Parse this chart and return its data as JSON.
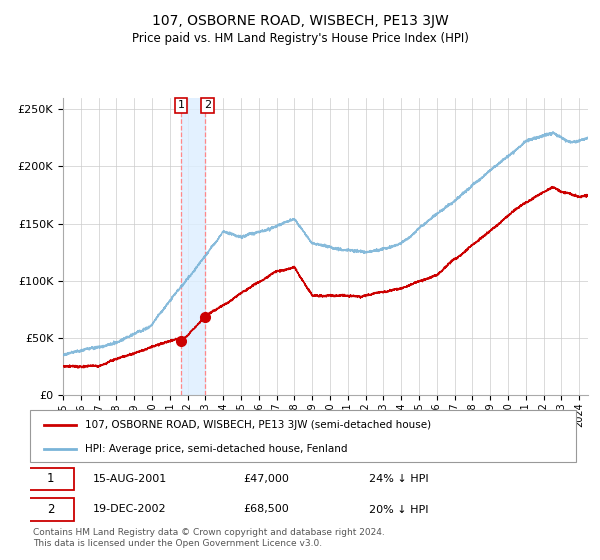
{
  "title": "107, OSBORNE ROAD, WISBECH, PE13 3JW",
  "subtitle": "Price paid vs. HM Land Registry's House Price Index (HPI)",
  "legend_line1": "107, OSBORNE ROAD, WISBECH, PE13 3JW (semi-detached house)",
  "legend_line2": "HPI: Average price, semi-detached house, Fenland",
  "transaction1_date": "15-AUG-2001",
  "transaction1_price": 47000,
  "transaction1_pct": "24% ↓ HPI",
  "transaction2_date": "19-DEC-2002",
  "transaction2_price": 68500,
  "transaction2_pct": "20% ↓ HPI",
  "footer": "Contains HM Land Registry data © Crown copyright and database right 2024.\nThis data is licensed under the Open Government Licence v3.0.",
  "hpi_color": "#7ab4d8",
  "price_color": "#cc0000",
  "marker_color": "#cc0000",
  "vline_color": "#ff8888",
  "span_color": "#ddeeff",
  "ylim": [
    0,
    260000
  ],
  "grid_color": "#cccccc",
  "background_color": "#ffffff",
  "xmin": 1995,
  "xmax": 2024.5
}
